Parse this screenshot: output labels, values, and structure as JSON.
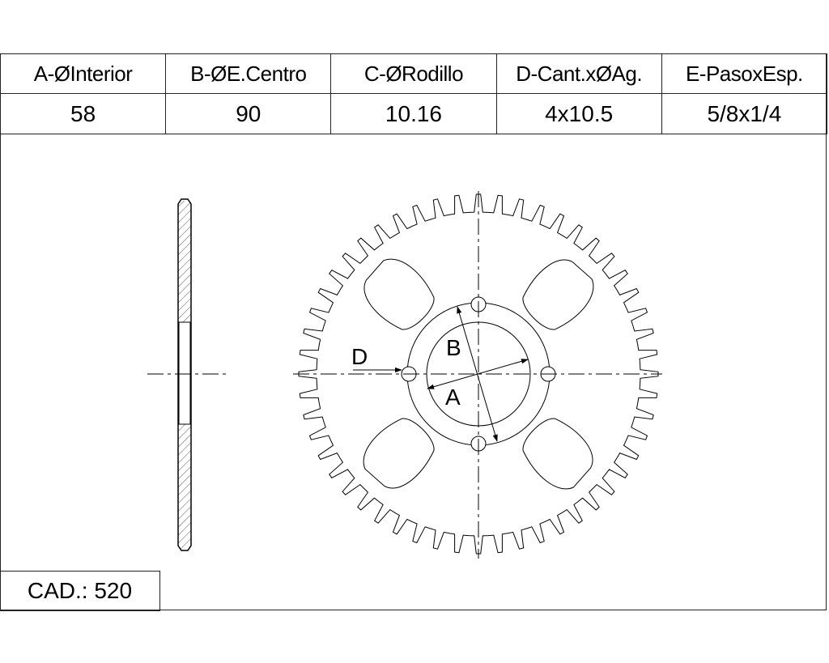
{
  "table": {
    "headers": [
      "A-ØInterior",
      "B-ØE.Centro",
      "C-ØRodillo",
      "D-Cant.xØAg.",
      "E-PasoxEsp."
    ],
    "values": [
      "58",
      "90",
      "10.16",
      "4x10.5",
      "5/8x1/4"
    ]
  },
  "cad": "CAD.: 520",
  "drawing": {
    "labels": {
      "a": "A",
      "b": "B",
      "d": "D"
    },
    "teeth": 52,
    "bolt_holes": 4,
    "cutouts": 4
  }
}
